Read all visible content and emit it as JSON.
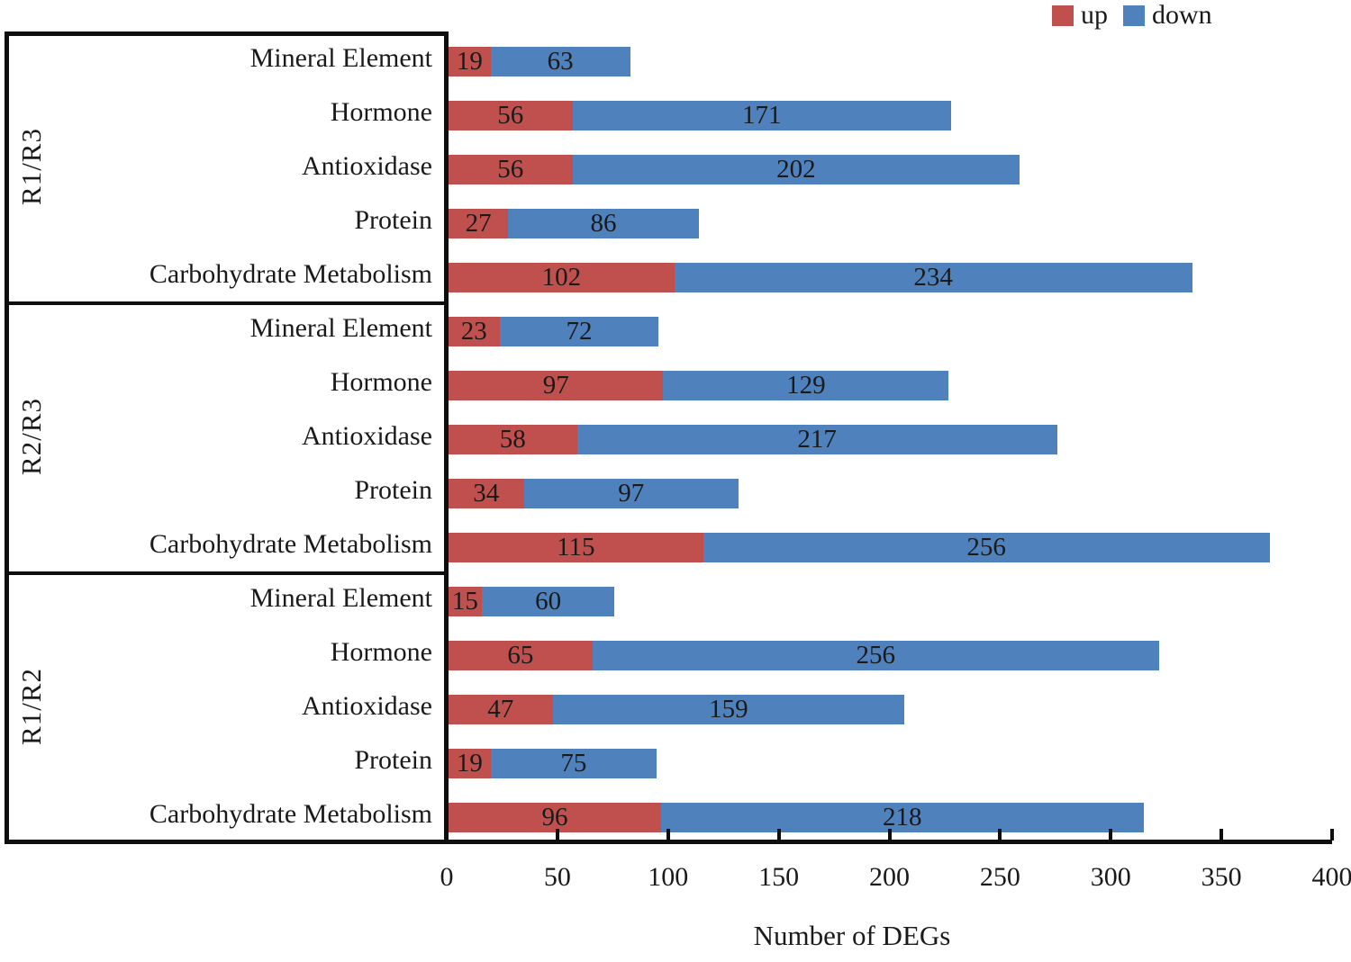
{
  "legend": [
    {
      "label": "up",
      "color": "#C0504D"
    },
    {
      "label": "down",
      "color": "#4F81BD"
    }
  ],
  "chart_data": {
    "type": "bar",
    "orientation": "horizontal",
    "stacked": true,
    "title": "",
    "xlabel": "Number of DEGs",
    "ylabel": "",
    "xlim": [
      0,
      400
    ],
    "xticks": [
      0,
      50,
      100,
      150,
      200,
      250,
      300,
      350,
      400
    ],
    "grid": false,
    "legend_position": "top-right",
    "series_names": [
      "up",
      "down"
    ],
    "series_colors": {
      "up": "#C0504D",
      "down": "#4F81BD"
    },
    "groups": [
      {
        "name": "R1/R3",
        "rows": [
          {
            "category": "Mineral Element",
            "up": 19,
            "down": 63
          },
          {
            "category": "Hormone",
            "up": 56,
            "down": 171
          },
          {
            "category": "Antioxidase",
            "up": 56,
            "down": 202
          },
          {
            "category": "Protein",
            "up": 27,
            "down": 86
          },
          {
            "category": "Carbohydrate Metabolism",
            "up": 102,
            "down": 234
          }
        ]
      },
      {
        "name": "R2/R3",
        "rows": [
          {
            "category": "Mineral Element",
            "up": 23,
            "down": 72
          },
          {
            "category": "Hormone",
            "up": 97,
            "down": 129
          },
          {
            "category": "Antioxidase",
            "up": 58,
            "down": 217
          },
          {
            "category": "Protein",
            "up": 34,
            "down": 97
          },
          {
            "category": "Carbohydrate Metabolism",
            "up": 115,
            "down": 256
          }
        ]
      },
      {
        "name": "R1/R2",
        "rows": [
          {
            "category": "Mineral Element",
            "up": 15,
            "down": 60
          },
          {
            "category": "Hormone",
            "up": 65,
            "down": 256
          },
          {
            "category": "Antioxidase",
            "up": 47,
            "down": 159
          },
          {
            "category": "Protein",
            "up": 19,
            "down": 75
          },
          {
            "category": "Carbohydrate Metabolism",
            "up": 96,
            "down": 218
          }
        ]
      }
    ]
  }
}
